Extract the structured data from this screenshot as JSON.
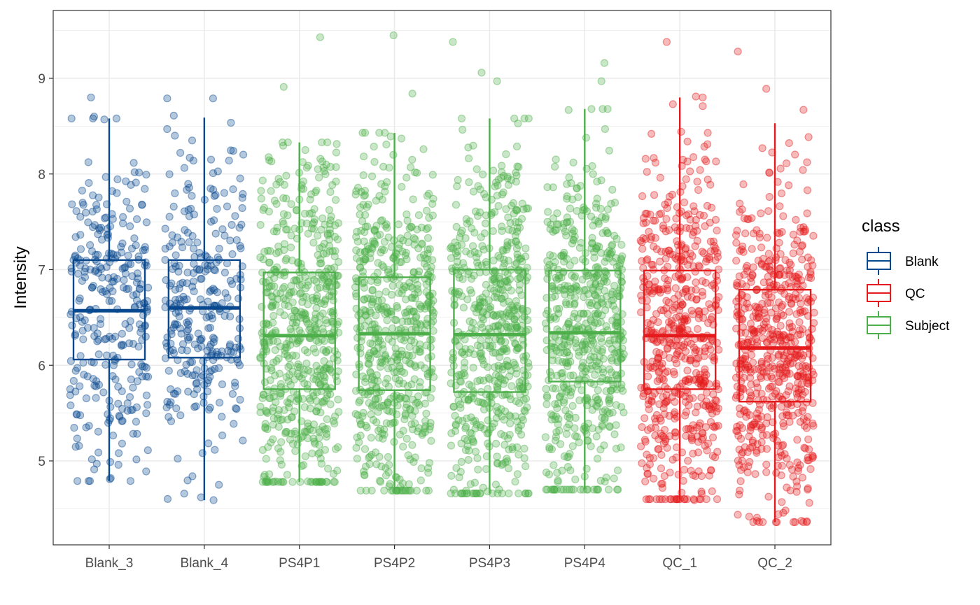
{
  "chart_data": {
    "type": "boxplot",
    "title": "",
    "xlabel": "",
    "ylabel": "Intensity",
    "ylim": [
      4.1,
      9.7
    ],
    "yticks": [
      5,
      6,
      7,
      8,
      9
    ],
    "grid": true,
    "legend": {
      "title": "class",
      "position": "right",
      "entries": [
        "Blank",
        "QC",
        "Subject"
      ]
    },
    "class_colors": {
      "Blank": "#08488e",
      "QC": "#e41a1c",
      "Subject": "#4daf4a"
    },
    "categories": [
      "Blank_3",
      "Blank_4",
      "PS4P1",
      "PS4P2",
      "PS4P3",
      "PS4P4",
      "QC_1",
      "QC_2"
    ],
    "boxes": [
      {
        "sample": "Blank_3",
        "class": "Blank",
        "whisker_low": 4.79,
        "q1": 6.06,
        "median": 6.57,
        "q3": 7.1,
        "whisker_high": 8.58,
        "n_points": 300,
        "outliers": [
          8.8,
          8.6,
          8.57,
          8.58,
          4.97,
          4.96,
          4.89,
          4.82,
          4.79
        ]
      },
      {
        "sample": "Blank_4",
        "class": "Blank",
        "whisker_low": 4.59,
        "q1": 6.08,
        "median": 6.6,
        "q3": 7.1,
        "whisker_high": 8.59,
        "n_points": 300,
        "outliers": [
          8.79,
          8.79,
          8.61,
          8.47,
          8.4,
          4.84,
          4.75,
          4.62,
          4.59
        ]
      },
      {
        "sample": "PS4P1",
        "class": "Subject",
        "whisker_low": 4.78,
        "q1": 5.75,
        "median": 6.31,
        "q3": 6.97,
        "whisker_high": 8.33,
        "n_points": 600,
        "outliers": [
          9.43,
          8.91,
          4.78,
          4.8
        ]
      },
      {
        "sample": "PS4P2",
        "class": "Subject",
        "whisker_low": 4.69,
        "q1": 5.74,
        "median": 6.33,
        "q3": 6.92,
        "whisker_high": 8.43,
        "n_points": 600,
        "outliers": [
          9.45,
          8.84,
          4.69,
          4.73
        ]
      },
      {
        "sample": "PS4P3",
        "class": "Subject",
        "whisker_low": 4.66,
        "q1": 5.72,
        "median": 6.32,
        "q3": 7.0,
        "whisker_high": 8.58,
        "n_points": 600,
        "outliers": [
          9.38,
          9.06,
          8.97,
          8.58,
          4.66
        ]
      },
      {
        "sample": "PS4P4",
        "class": "Subject",
        "whisker_low": 4.7,
        "q1": 5.83,
        "median": 6.34,
        "q3": 6.99,
        "whisker_high": 8.68,
        "n_points": 600,
        "outliers": [
          9.16,
          8.97,
          8.47,
          4.7
        ]
      },
      {
        "sample": "QC_1",
        "class": "QC",
        "whisker_low": 4.6,
        "q1": 5.75,
        "median": 6.31,
        "q3": 6.99,
        "whisker_high": 8.8,
        "n_points": 600,
        "outliers": [
          9.38,
          8.81,
          8.71,
          4.59
        ]
      },
      {
        "sample": "QC_2",
        "class": "QC",
        "whisker_low": 4.36,
        "q1": 5.62,
        "median": 6.18,
        "q3": 6.79,
        "whisker_high": 8.53,
        "n_points": 600,
        "outliers": [
          9.28,
          8.89,
          8.67,
          4.36,
          4.57
        ]
      }
    ]
  }
}
